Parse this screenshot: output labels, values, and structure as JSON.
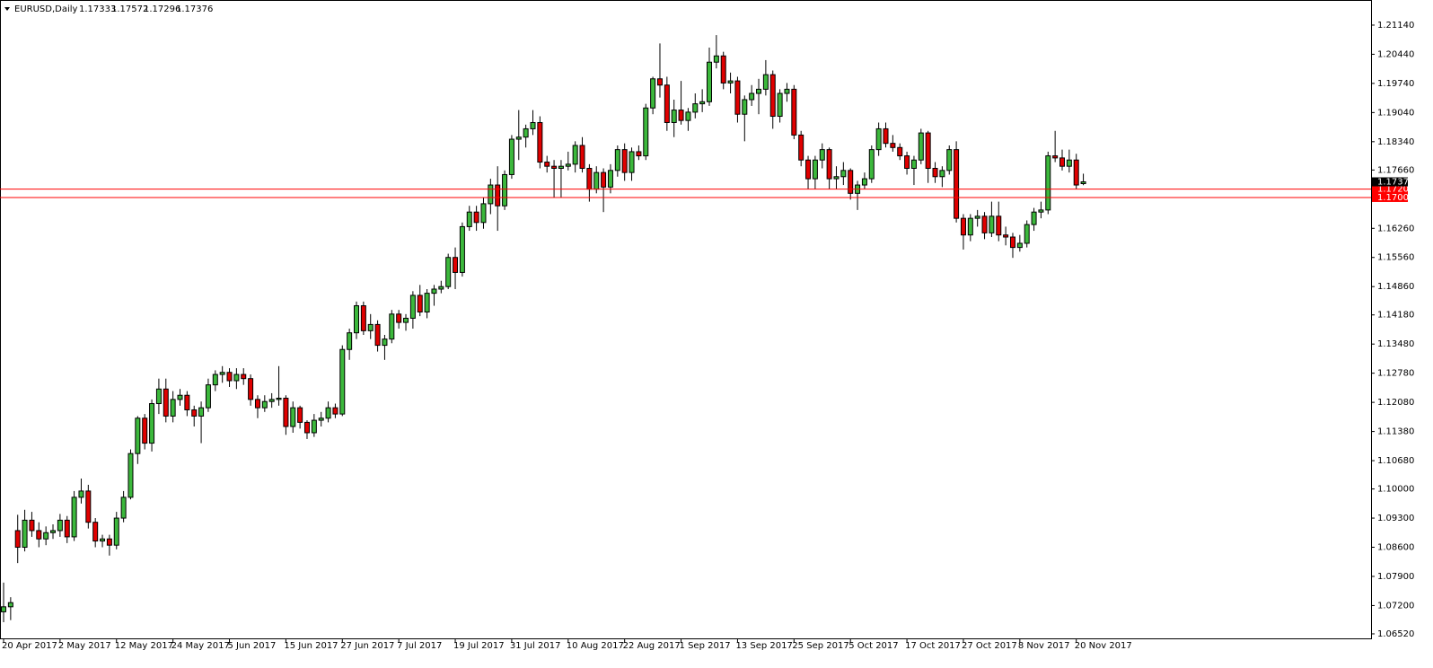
{
  "chart_data": {
    "type": "candlestick",
    "title": "EURUSD,Daily",
    "up_color": "#3cb83c",
    "down_color": "#e00000",
    "grid": false,
    "ylim": [
      1.0639,
      1.217
    ],
    "yticks": [
      {
        "value": 1.0652,
        "label": "1.06520"
      },
      {
        "value": 1.072,
        "label": "1.07200"
      },
      {
        "value": 1.079,
        "label": "1.07900"
      },
      {
        "value": 1.086,
        "label": "1.08600"
      },
      {
        "value": 1.093,
        "label": "1.09300"
      },
      {
        "value": 1.1,
        "label": "1.10000"
      },
      {
        "value": 1.1068,
        "label": "1.10680"
      },
      {
        "value": 1.1138,
        "label": "1.11380"
      },
      {
        "value": 1.1208,
        "label": "1.12080"
      },
      {
        "value": 1.1278,
        "label": "1.12780"
      },
      {
        "value": 1.1348,
        "label": "1.13480"
      },
      {
        "value": 1.1418,
        "label": "1.14180"
      },
      {
        "value": 1.1486,
        "label": "1.14860"
      },
      {
        "value": 1.1556,
        "label": "1.15560"
      },
      {
        "value": 1.1626,
        "label": "1.16260"
      },
      {
        "value": 1.1766,
        "label": "1.17660"
      },
      {
        "value": 1.1834,
        "label": "1.18340"
      },
      {
        "value": 1.1904,
        "label": "1.19040"
      },
      {
        "value": 1.1974,
        "label": "1.19740"
      },
      {
        "value": 1.2044,
        "label": "1.20440"
      },
      {
        "value": 1.2114,
        "label": "1.21140"
      }
    ],
    "hlines": [
      {
        "value": 1.172,
        "label": "1.17200"
      },
      {
        "value": 1.17,
        "label": "1.17000"
      }
    ],
    "hline_color": "#ff0000",
    "categories": [
      "20 Apr 2017",
      null,
      null,
      null,
      null,
      null,
      null,
      null,
      "2 May 2017",
      null,
      null,
      null,
      null,
      null,
      null,
      null,
      "12 May 2017",
      null,
      null,
      null,
      null,
      null,
      null,
      null,
      "24 May 2017",
      null,
      null,
      null,
      null,
      null,
      null,
      null,
      "5 Jun 2017",
      null,
      null,
      null,
      null,
      null,
      null,
      null,
      "15 Jun 2017",
      null,
      null,
      null,
      null,
      null,
      null,
      null,
      "27 Jun 2017",
      null,
      null,
      null,
      null,
      null,
      null,
      null,
      "7 Jul 2017",
      null,
      null,
      null,
      null,
      null,
      null,
      null,
      "19 Jul 2017",
      null,
      null,
      null,
      null,
      null,
      null,
      null,
      "31 Jul 2017",
      null,
      null,
      null,
      null,
      null,
      null,
      null,
      "10 Aug 2017",
      null,
      null,
      null,
      null,
      null,
      null,
      null,
      "22 Aug 2017",
      null,
      null,
      null,
      null,
      null,
      null,
      null,
      "1 Sep 2017",
      null,
      null,
      null,
      null,
      null,
      null,
      null,
      "13 Sep 2017",
      null,
      null,
      null,
      null,
      null,
      null,
      null,
      "25 Sep 2017",
      null,
      null,
      null,
      null,
      null,
      null,
      null,
      "5 Oct 2017",
      null,
      null,
      null,
      null,
      null,
      null,
      null,
      "17 Oct 2017",
      null,
      null,
      null,
      null,
      null,
      null,
      null,
      "27 Oct 2017",
      null,
      null,
      null,
      null,
      null,
      null,
      null,
      "8 Nov 2017",
      null,
      null,
      null,
      null,
      null,
      null,
      null,
      "20 Nov 2017",
      null
    ],
    "open": [
      1.0705,
      1.0717,
      1.09,
      1.086,
      1.0925,
      1.09,
      1.088,
      1.0895,
      1.09,
      1.0925,
      1.0885,
      1.098,
      1.0995,
      1.092,
      1.0875,
      1.088,
      1.0865,
      1.093,
      1.098,
      1.1085,
      1.117,
      1.111,
      1.1205,
      1.124,
      1.1175,
      1.1215,
      1.1225,
      1.119,
      1.1175,
      1.1195,
      1.125,
      1.1275,
      1.128,
      1.126,
      1.1275,
      1.1265,
      1.1215,
      1.1195,
      1.121,
      1.1215,
      1.1218,
      1.115,
      1.1195,
      1.116,
      1.1135,
      1.1165,
      1.117,
      1.1195,
      1.118,
      1.1335,
      1.1375,
      1.144,
      1.138,
      1.1395,
      1.1345,
      1.136,
      1.142,
      1.14,
      1.141,
      1.1465,
      1.1425,
      1.147,
      1.148,
      1.1486,
      1.1556,
      1.152,
      1.163,
      1.1665,
      1.164,
      1.1685,
      1.173,
      1.168,
      1.1755,
      1.184,
      1.1845,
      1.1865,
      1.188,
      1.1785,
      1.1775,
      1.177,
      1.1775,
      1.178,
      1.1825,
      1.177,
      1.172,
      1.176,
      1.1725,
      1.1765,
      1.1815,
      1.176,
      1.181,
      1.18,
      1.1915,
      1.1985,
      1.197,
      1.188,
      1.191,
      1.1885,
      1.1905,
      1.1925,
      1.193,
      1.2025,
      1.204,
      1.1975,
      1.198,
      1.19,
      1.1935,
      1.195,
      1.196,
      1.1995,
      1.1895,
      1.195,
      1.196,
      1.185,
      1.179,
      1.1745,
      1.179,
      1.1815,
      1.1745,
      1.175,
      1.1765,
      1.171,
      1.173,
      1.1745,
      1.1815,
      1.1865,
      1.183,
      1.182,
      1.18,
      1.177,
      1.179,
      1.1855,
      1.177,
      1.175,
      1.1765,
      1.1815,
      1.165,
      1.161,
      1.165,
      1.1655,
      1.1615,
      1.1655,
      1.161,
      1.1605,
      1.158,
      1.159,
      1.1635,
      1.1665,
      1.167,
      1.18,
      1.1795,
      1.1775,
      1.179,
      1.17333
    ],
    "high": [
      1.0775,
      1.074,
      1.0938,
      1.095,
      1.0945,
      1.092,
      1.091,
      1.0915,
      1.094,
      1.0935,
      1.0995,
      1.1025,
      1.101,
      1.093,
      1.089,
      1.089,
      1.0945,
      1.0995,
      1.1095,
      1.1175,
      1.118,
      1.1215,
      1.1265,
      1.1265,
      1.1235,
      1.124,
      1.1235,
      1.12,
      1.121,
      1.1265,
      1.1285,
      1.1295,
      1.129,
      1.129,
      1.129,
      1.1275,
      1.1225,
      1.1225,
      1.123,
      1.1295,
      1.1225,
      1.121,
      1.12,
      1.1165,
      1.118,
      1.1185,
      1.121,
      1.1205,
      1.1345,
      1.1385,
      1.145,
      1.145,
      1.142,
      1.1405,
      1.137,
      1.143,
      1.143,
      1.142,
      1.1475,
      1.149,
      1.148,
      1.149,
      1.15,
      1.1565,
      1.158,
      1.164,
      1.168,
      1.168,
      1.17,
      1.1745,
      1.1775,
      1.1765,
      1.185,
      1.191,
      1.1875,
      1.191,
      1.1895,
      1.18,
      1.179,
      1.179,
      1.181,
      1.1835,
      1.1845,
      1.178,
      1.1775,
      1.177,
      1.178,
      1.1825,
      1.183,
      1.182,
      1.1825,
      1.1925,
      1.199,
      1.207,
      1.199,
      1.1935,
      1.198,
      1.1915,
      1.195,
      1.196,
      1.206,
      1.209,
      1.205,
      1.2,
      1.199,
      1.1945,
      1.197,
      1.1985,
      1.203,
      1.2005,
      1.196,
      1.1975,
      1.197,
      1.186,
      1.18,
      1.18,
      1.183,
      1.182,
      1.1775,
      1.1785,
      1.177,
      1.174,
      1.176,
      1.1825,
      1.188,
      1.188,
      1.185,
      1.183,
      1.181,
      1.18,
      1.1865,
      1.186,
      1.1785,
      1.1775,
      1.1825,
      1.1835,
      1.166,
      1.166,
      1.167,
      1.1665,
      1.169,
      1.169,
      1.163,
      1.1615,
      1.161,
      1.1645,
      1.1675,
      1.169,
      1.181,
      1.186,
      1.1815,
      1.1815,
      1.1805,
      1.17572
    ],
    "low": [
      1.068,
      1.0685,
      1.0822,
      1.085,
      1.0885,
      1.086,
      1.0865,
      1.088,
      1.0885,
      1.087,
      1.0875,
      1.0965,
      1.0905,
      1.086,
      1.086,
      1.084,
      1.0855,
      1.092,
      1.0975,
      1.106,
      1.1095,
      1.109,
      1.118,
      1.116,
      1.116,
      1.12,
      1.1175,
      1.115,
      1.111,
      1.1185,
      1.1235,
      1.1255,
      1.1245,
      1.124,
      1.125,
      1.12,
      1.117,
      1.1185,
      1.1195,
      1.12,
      1.113,
      1.1135,
      1.1145,
      1.112,
      1.1125,
      1.115,
      1.116,
      1.117,
      1.1175,
      1.131,
      1.136,
      1.137,
      1.136,
      1.133,
      1.131,
      1.135,
      1.1385,
      1.138,
      1.1385,
      1.1415,
      1.141,
      1.144,
      1.147,
      1.148,
      1.148,
      1.151,
      1.162,
      1.162,
      1.1625,
      1.166,
      1.162,
      1.167,
      1.1745,
      1.179,
      1.182,
      1.185,
      1.177,
      1.176,
      1.17,
      1.17,
      1.1765,
      1.176,
      1.176,
      1.169,
      1.171,
      1.1665,
      1.171,
      1.175,
      1.174,
      1.174,
      1.179,
      1.179,
      1.19,
      1.194,
      1.186,
      1.1845,
      1.1875,
      1.186,
      1.189,
      1.1905,
      1.192,
      1.201,
      1.196,
      1.195,
      1.188,
      1.1835,
      1.192,
      1.19,
      1.1945,
      1.1865,
      1.188,
      1.193,
      1.184,
      1.1775,
      1.172,
      1.172,
      1.177,
      1.172,
      1.172,
      1.173,
      1.1695,
      1.167,
      1.172,
      1.1735,
      1.18,
      1.182,
      1.181,
      1.179,
      1.1755,
      1.173,
      1.178,
      1.1735,
      1.1735,
      1.1725,
      1.1755,
      1.164,
      1.1575,
      1.1595,
      1.163,
      1.16,
      1.1605,
      1.1595,
      1.1585,
      1.1555,
      1.157,
      1.158,
      1.162,
      1.165,
      1.166,
      1.1785,
      1.1765,
      1.176,
      1.172,
      1.17296
    ],
    "close": [
      1.0717,
      1.0727,
      1.086,
      1.0925,
      1.09,
      1.088,
      1.0895,
      1.09,
      1.0925,
      1.0885,
      1.098,
      1.0995,
      1.092,
      1.0875,
      1.088,
      1.0865,
      1.093,
      1.098,
      1.1085,
      1.117,
      1.111,
      1.1205,
      1.124,
      1.1175,
      1.1215,
      1.1225,
      1.119,
      1.1175,
      1.1195,
      1.125,
      1.1275,
      1.128,
      1.126,
      1.1275,
      1.1265,
      1.1215,
      1.1195,
      1.121,
      1.1215,
      1.1218,
      1.115,
      1.1195,
      1.116,
      1.1135,
      1.1165,
      1.117,
      1.1195,
      1.118,
      1.1335,
      1.1375,
      1.144,
      1.138,
      1.1395,
      1.1345,
      1.136,
      1.142,
      1.14,
      1.141,
      1.1465,
      1.1425,
      1.147,
      1.148,
      1.1486,
      1.1556,
      1.152,
      1.163,
      1.1665,
      1.164,
      1.1685,
      1.173,
      1.168,
      1.1755,
      1.184,
      1.1845,
      1.1865,
      1.188,
      1.1785,
      1.1775,
      1.177,
      1.1775,
      1.178,
      1.1825,
      1.177,
      1.172,
      1.176,
      1.1725,
      1.1765,
      1.1815,
      1.176,
      1.181,
      1.18,
      1.1915,
      1.1985,
      1.197,
      1.188,
      1.191,
      1.1885,
      1.1905,
      1.1925,
      1.193,
      1.2025,
      1.204,
      1.1975,
      1.198,
      1.19,
      1.1935,
      1.195,
      1.196,
      1.1995,
      1.1895,
      1.195,
      1.196,
      1.185,
      1.179,
      1.1745,
      1.179,
      1.1815,
      1.1745,
      1.175,
      1.1765,
      1.171,
      1.173,
      1.1745,
      1.1815,
      1.1865,
      1.183,
      1.182,
      1.18,
      1.177,
      1.179,
      1.1855,
      1.177,
      1.175,
      1.1765,
      1.1815,
      1.165,
      1.161,
      1.165,
      1.1655,
      1.1615,
      1.1655,
      1.161,
      1.1605,
      1.158,
      1.159,
      1.1635,
      1.1665,
      1.167,
      1.18,
      1.1795,
      1.1775,
      1.179,
      1.173,
      1.17376
    ]
  }
}
